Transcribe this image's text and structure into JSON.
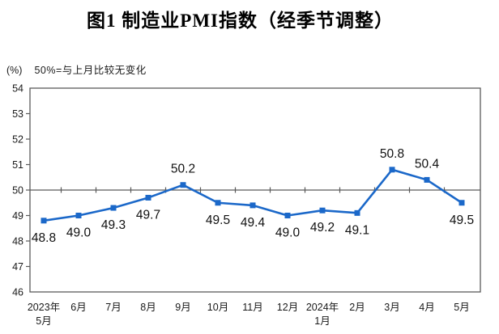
{
  "figure": {
    "title": "图1  制造业PMI指数（经季节调整）",
    "unit_label": "(%)",
    "note": "50%=与上月比较无变化"
  },
  "chart_data": {
    "type": "line",
    "title": "图1 制造业PMI指数（经季节调整）",
    "categories": [
      "2023年\n5月",
      "6月",
      "7月",
      "8月",
      "9月",
      "10月",
      "11月",
      "12月",
      "2024年\n1月",
      "2月",
      "3月",
      "4月",
      "5月"
    ],
    "series": [
      {
        "name": "制造业PMI指数",
        "values": [
          48.8,
          49.0,
          49.3,
          49.7,
          50.2,
          49.5,
          49.4,
          49.0,
          49.2,
          49.1,
          50.8,
          50.4,
          49.5
        ]
      }
    ],
    "ylabel": "(%)",
    "ylim": [
      46,
      54
    ],
    "yticks": [
      54,
      53,
      52,
      51,
      50,
      49,
      48,
      47,
      46
    ],
    "reference_line": 50,
    "data_labels": true,
    "data_label_decimals": 1,
    "grid": false,
    "legend": "none",
    "marker": "square",
    "line_color": "#1b68c9",
    "axis_color": "#5a5a5a",
    "text_color": "#1a1a1a"
  }
}
